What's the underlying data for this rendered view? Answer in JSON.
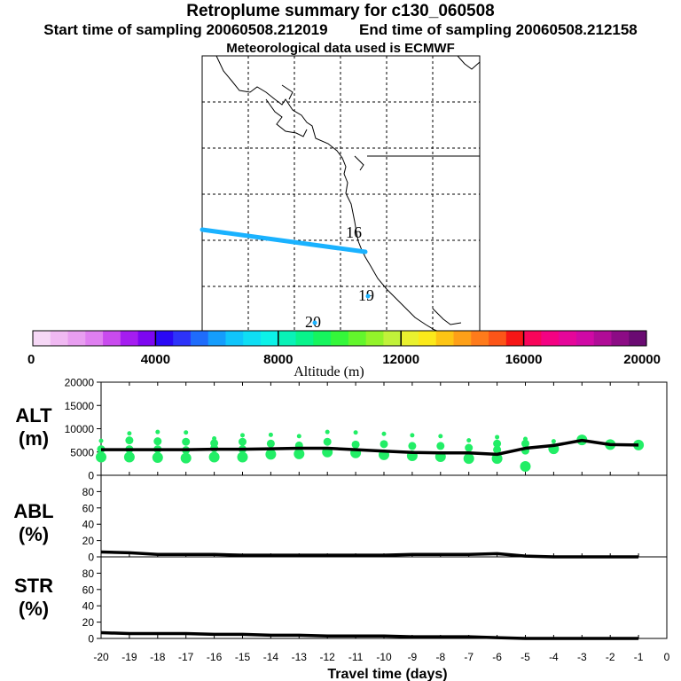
{
  "header": {
    "title": "Retroplume summary for c130_060508",
    "start_label": "Start time of sampling 20060508.212019",
    "end_label": "End time of sampling 20060508.212158",
    "met_label": "Meteorological data used is ECMWF"
  },
  "map": {
    "trajectory_color": "#1ab2ff",
    "labels": [
      {
        "text": "16"
      },
      {
        "text": "19"
      },
      {
        "text": "20"
      }
    ]
  },
  "colorbar": {
    "colors": [
      "#f6d8f6",
      "#f0b9f2",
      "#e89ef0",
      "#df7ff0",
      "#c94bee",
      "#a51df0",
      "#7d06f0",
      "#2a08f5",
      "#2d33f9",
      "#1f6cfb",
      "#159dfc",
      "#10c5fb",
      "#0fdef4",
      "#0cf2e8",
      "#09f2b7",
      "#08f48b",
      "#16f55e",
      "#34f73a",
      "#63f62c",
      "#93f32a",
      "#c1f23a",
      "#e9f12f",
      "#fbe91a",
      "#fdc514",
      "#fea018",
      "#fe7b1b",
      "#fc5518",
      "#f61616",
      "#f8055a",
      "#f40283",
      "#e5069a",
      "#d009a5",
      "#b00c97",
      "#8c0c85",
      "#6a0b72"
    ],
    "ticks": [
      "0",
      "4000",
      "8000",
      "12000",
      "16000",
      "20000"
    ],
    "title": "Altitude (m)"
  },
  "chart_data": [
    {
      "type": "line",
      "panel": "ALT",
      "ylabel": [
        "ALT",
        "(m)"
      ],
      "xlim": [
        -20,
        0
      ],
      "ylim": [
        0,
        20000
      ],
      "yticks": [
        "20000",
        "15000",
        "10000",
        "5000",
        "0"
      ],
      "x": [
        -20,
        -19,
        -18,
        -17,
        -16,
        -15,
        -14,
        -13,
        -12,
        -11,
        -10,
        -9,
        -8,
        -7,
        -6,
        -5,
        -4,
        -3,
        -2,
        -1
      ],
      "mean": [
        5500,
        5500,
        5500,
        5500,
        5600,
        5600,
        5700,
        5800,
        5800,
        5500,
        5200,
        4900,
        4800,
        4800,
        4500,
        5800,
        6400,
        7500,
        6600,
        6500
      ],
      "scatter_color": "#22ee66",
      "scatter": [
        {
          "x": -20,
          "alts": [
            3900,
            5600,
            7400
          ]
        },
        {
          "x": -19,
          "alts": [
            3900,
            5600,
            7500,
            9000
          ]
        },
        {
          "x": -18,
          "alts": [
            3800,
            5600,
            7300,
            9300
          ]
        },
        {
          "x": -17,
          "alts": [
            3700,
            5400,
            7200,
            9200
          ]
        },
        {
          "x": -16,
          "alts": [
            3900,
            5800,
            6900,
            7900
          ]
        },
        {
          "x": -15,
          "alts": [
            3900,
            5600,
            7200,
            8600
          ]
        },
        {
          "x": -14,
          "alts": [
            4500,
            6800,
            8700
          ]
        },
        {
          "x": -13,
          "alts": [
            4600,
            6400,
            8400
          ]
        },
        {
          "x": -12,
          "alts": [
            5000,
            7200,
            9300
          ]
        },
        {
          "x": -11,
          "alts": [
            4800,
            6600,
            9200
          ]
        },
        {
          "x": -10,
          "alts": [
            4400,
            6700,
            8900
          ]
        },
        {
          "x": -9,
          "alts": [
            4200,
            6300,
            8600
          ]
        },
        {
          "x": -8,
          "alts": [
            4000,
            6300,
            8400
          ]
        },
        {
          "x": -7,
          "alts": [
            3600,
            5900,
            7500
          ]
        },
        {
          "x": -6,
          "alts": [
            3600,
            5500,
            6800,
            8200
          ]
        },
        {
          "x": -5,
          "alts": [
            1900,
            5300,
            6800,
            7800
          ]
        },
        {
          "x": -4,
          "alts": [
            5700,
            7300
          ]
        },
        {
          "x": -3,
          "alts": [
            7600
          ]
        },
        {
          "x": -2,
          "alts": [
            6600
          ]
        },
        {
          "x": -1,
          "alts": [
            6500
          ]
        }
      ]
    },
    {
      "type": "line",
      "panel": "ABL",
      "ylabel": [
        "ABL",
        "(%)"
      ],
      "xlim": [
        -20,
        0
      ],
      "ylim": [
        0,
        100
      ],
      "yticks": [
        "80",
        "60",
        "40",
        "20",
        "0"
      ],
      "x": [
        -20,
        -19,
        -18,
        -17,
        -16,
        -15,
        -14,
        -13,
        -12,
        -11,
        -10,
        -9,
        -8,
        -7,
        -6,
        -5,
        -4,
        -3,
        -2,
        -1
      ],
      "values": [
        6,
        5,
        3,
        3,
        3,
        2,
        2,
        2,
        2,
        2,
        2,
        3,
        3,
        3,
        4,
        1,
        0,
        0,
        0,
        0
      ]
    },
    {
      "type": "line",
      "panel": "STR",
      "ylabel": [
        "STR",
        "(%)"
      ],
      "xlim": [
        -20,
        0
      ],
      "ylim": [
        0,
        100
      ],
      "yticks": [
        "80",
        "60",
        "40",
        "20",
        "0"
      ],
      "x": [
        -20,
        -19,
        -18,
        -17,
        -16,
        -15,
        -14,
        -13,
        -12,
        -11,
        -10,
        -9,
        -8,
        -7,
        -6,
        -5,
        -4,
        -3,
        -2,
        -1
      ],
      "values": [
        7,
        6,
        6,
        6,
        5,
        5,
        4,
        4,
        3,
        3,
        3,
        2,
        2,
        2,
        1,
        0,
        0,
        0,
        0,
        0
      ],
      "xlabel": "Travel time (days)",
      "xticks": [
        "-20",
        "-19",
        "-18",
        "-17",
        "-16",
        "-15",
        "-14",
        "-13",
        "-12",
        "-11",
        "-10",
        "-9",
        "-8",
        "-7",
        "-6",
        "-5",
        "-4",
        "-3",
        "-2",
        "-1",
        "0"
      ]
    }
  ]
}
